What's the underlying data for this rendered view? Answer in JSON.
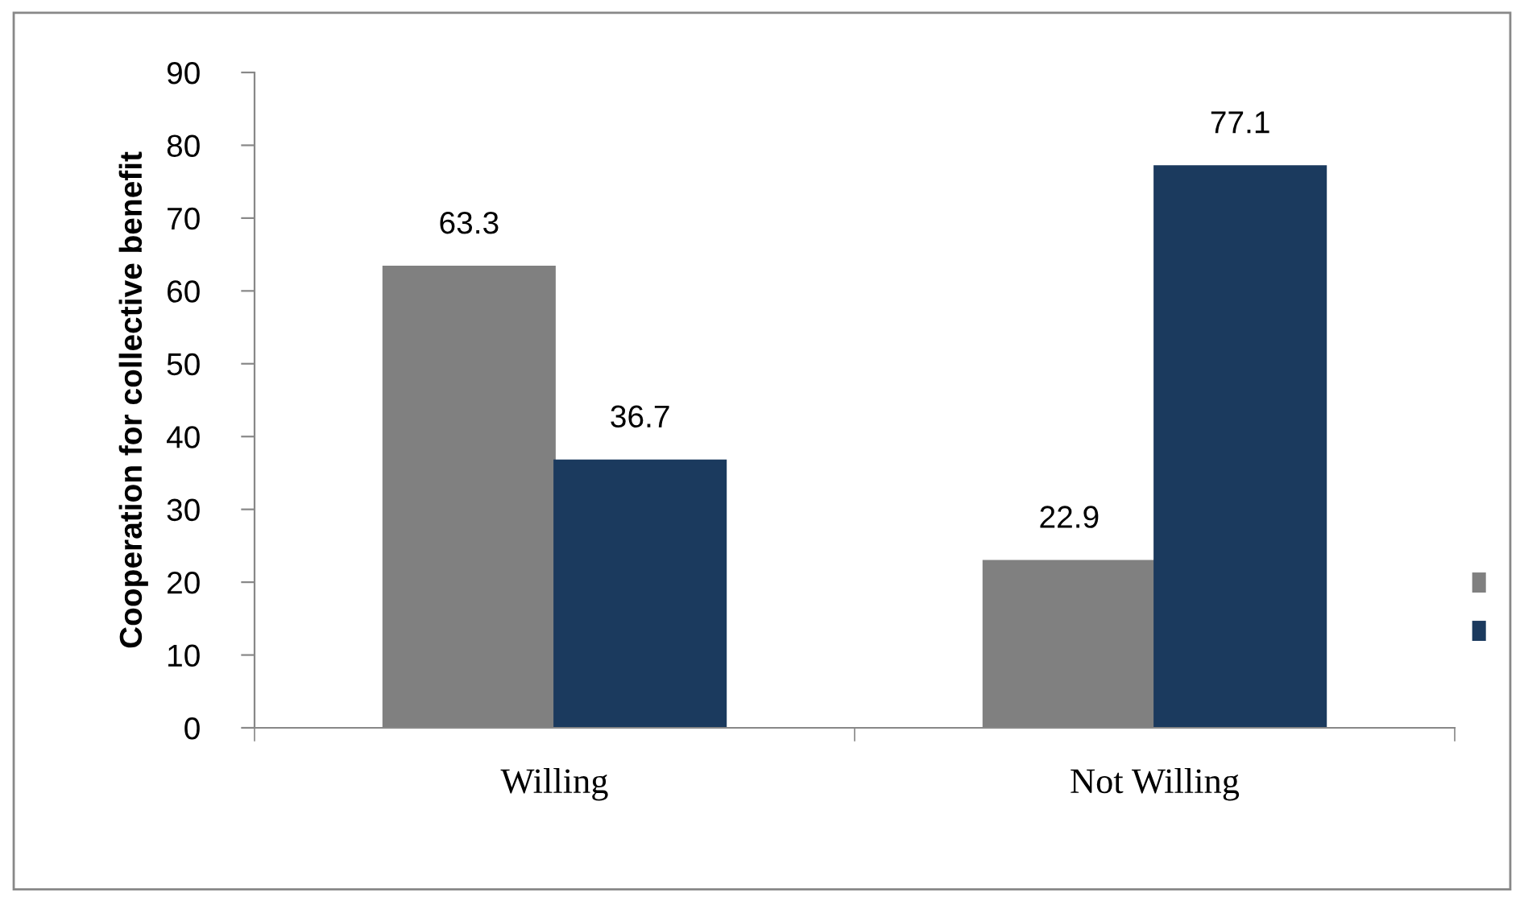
{
  "chart_data": {
    "type": "bar",
    "ylabel": "Cooperation for collective benefit",
    "categories": [
      "Willing",
      "Not Willing"
    ],
    "series": [
      {
        "color": "#808080",
        "values": [
          63.3,
          22.9
        ]
      },
      {
        "color": "#1b3a5e",
        "values": [
          36.7,
          77.1
        ]
      }
    ],
    "ylim": [
      0,
      90
    ],
    "yticks": [
      0,
      10,
      20,
      30,
      40,
      50,
      60,
      70,
      80,
      90
    ],
    "data_labels": true,
    "grid": false
  }
}
